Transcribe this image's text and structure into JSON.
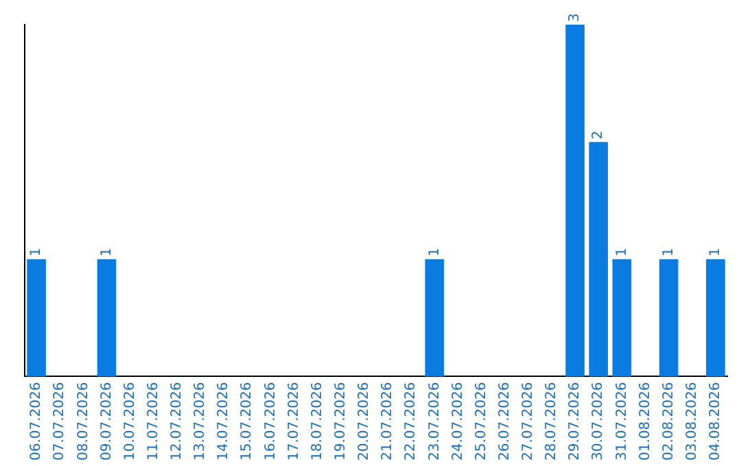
{
  "chart_data": {
    "type": "bar",
    "categories": [
      "06.07.2026",
      "07.07.2026",
      "08.07.2026",
      "09.07.2026",
      "10.07.2026",
      "11.07.2026",
      "12.07.2026",
      "13.07.2026",
      "14.07.2026",
      "15.07.2026",
      "16.07.2026",
      "17.07.2026",
      "18.07.2026",
      "19.07.2026",
      "20.07.2026",
      "21.07.2026",
      "22.07.2026",
      "23.07.2026",
      "24.07.2026",
      "25.07.2026",
      "26.07.2026",
      "27.07.2026",
      "28.07.2026",
      "29.07.2026",
      "30.07.2026",
      "31.07.2026",
      "01.08.2026",
      "02.08.2026",
      "03.08.2026",
      "04.08.2026"
    ],
    "values": [
      1,
      0,
      0,
      1,
      0,
      0,
      0,
      0,
      0,
      0,
      0,
      0,
      0,
      0,
      0,
      0,
      0,
      1,
      0,
      0,
      0,
      0,
      0,
      3,
      2,
      1,
      0,
      1,
      0,
      1
    ],
    "value_labels": [
      "1",
      null,
      null,
      "1",
      null,
      null,
      null,
      null,
      null,
      null,
      null,
      null,
      null,
      null,
      null,
      null,
      null,
      "1",
      null,
      null,
      null,
      null,
      null,
      "3",
      "2",
      "1",
      null,
      "1",
      null,
      "1"
    ],
    "color": "#0a7be0",
    "grid": false,
    "legend": false,
    "tick_labels": "x"
  }
}
